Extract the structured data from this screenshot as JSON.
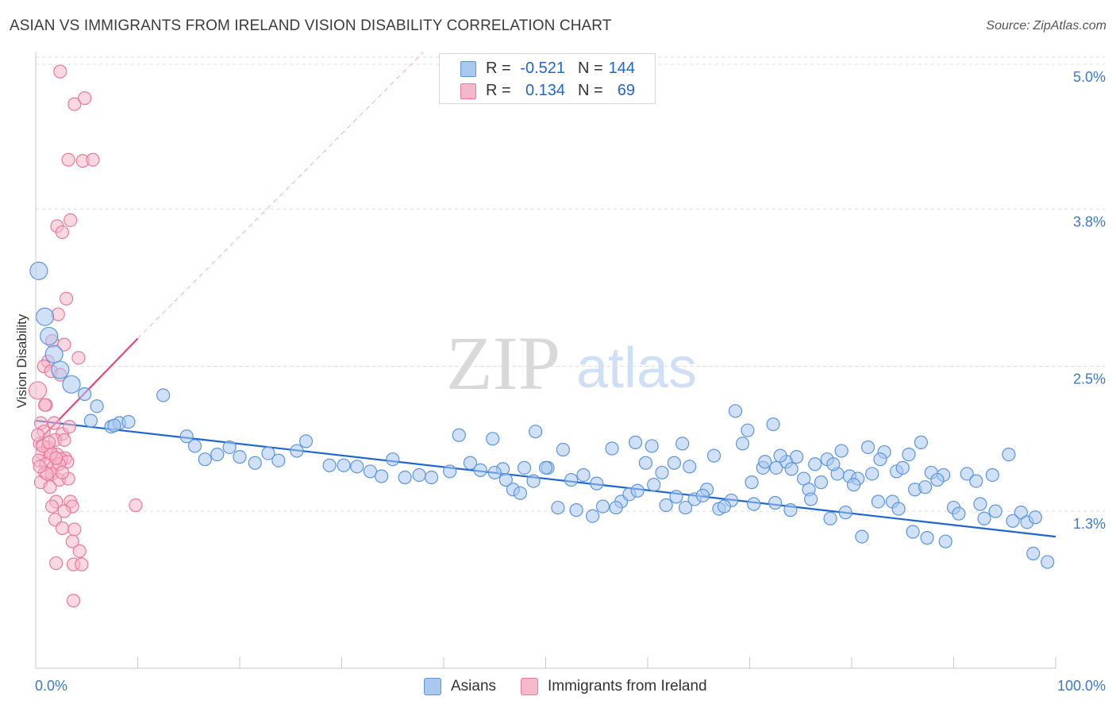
{
  "title": "ASIAN VS IMMIGRANTS FROM IRELAND VISION DISABILITY CORRELATION CHART",
  "source_label": "Source:",
  "source_value": "ZipAtlas.com",
  "watermark": {
    "zip": "ZIP",
    "atlas": "atlas"
  },
  "colors": {
    "blue_fill": "#a9c8f0",
    "blue_stroke": "#5b95dd",
    "blue_line": "#1f66cf",
    "pink_fill": "#f6b8cb",
    "pink_stroke": "#e9799d",
    "pink_line": "#e8457a",
    "axis_text": "#3b78d0",
    "grid": "#dcdcdc"
  },
  "legend_top": [
    {
      "r_label": "R =",
      "r_value": "-0.521",
      "n_label": "N =",
      "n_value": "144"
    },
    {
      "r_label": "R =",
      "r_value": "0.134",
      "n_label": "N =",
      "n_value": "69"
    }
  ],
  "legend_bottom": [
    "Asians",
    "Immigrants from Ireland"
  ],
  "chart_data": {
    "type": "scatter",
    "title": "ASIAN VS IMMIGRANTS FROM IRELAND VISION DISABILITY CORRELATION CHART",
    "xlabel": "",
    "ylabel": "Vision Disability",
    "x_unit": "%",
    "xlim": [
      0,
      100
    ],
    "ylim": [
      0,
      5.2
    ],
    "x_tick_labels": [
      "0.0%",
      "100.0%"
    ],
    "y_ticks": [
      1.3,
      2.5,
      3.8,
      5.0
    ],
    "y_tick_labels": [
      "1.3%",
      "2.5%",
      "3.8%",
      "5.0%"
    ],
    "grid": true,
    "legend_position": "top-center",
    "series": [
      {
        "name": "Asians",
        "r": -0.521,
        "n": 144,
        "trend": {
          "x": [
            0,
            100
          ],
          "y": [
            2.05,
            1.09
          ],
          "style": "solid"
        },
        "points": [
          [
            0.3,
            3.29,
            2
          ],
          [
            0.9,
            2.91,
            2
          ],
          [
            1.3,
            2.75,
            2
          ],
          [
            1.8,
            2.6,
            2
          ],
          [
            2.4,
            2.47,
            2
          ],
          [
            3.5,
            2.35,
            2
          ],
          [
            4.8,
            2.27,
            1
          ],
          [
            6.0,
            2.17,
            1
          ],
          [
            5.4,
            2.05,
            1
          ],
          [
            7.4,
            2.0,
            1
          ],
          [
            8.2,
            2.03,
            1
          ],
          [
            7.7,
            2.01,
            1
          ],
          [
            9.1,
            2.04,
            1
          ],
          [
            12.5,
            2.26,
            1
          ],
          [
            14.8,
            1.92,
            1
          ],
          [
            15.6,
            1.84,
            1
          ],
          [
            16.6,
            1.73,
            1
          ],
          [
            17.8,
            1.77,
            1
          ],
          [
            19.0,
            1.83,
            1
          ],
          [
            20.0,
            1.75,
            1
          ],
          [
            21.5,
            1.7,
            1
          ],
          [
            22.8,
            1.78,
            1
          ],
          [
            23.8,
            1.72,
            1
          ],
          [
            25.6,
            1.8,
            1
          ],
          [
            26.5,
            1.88,
            1
          ],
          [
            28.8,
            1.68,
            1
          ],
          [
            30.2,
            1.68,
            1
          ],
          [
            31.5,
            1.67,
            1
          ],
          [
            32.8,
            1.63,
            1
          ],
          [
            33.9,
            1.59,
            1
          ],
          [
            35.0,
            1.73,
            1
          ],
          [
            36.2,
            1.58,
            1
          ],
          [
            37.6,
            1.6,
            1
          ],
          [
            38.8,
            1.58,
            1
          ],
          [
            40.6,
            1.63,
            1
          ],
          [
            41.5,
            1.93,
            1
          ],
          [
            42.6,
            1.7,
            1
          ],
          [
            43.6,
            1.64,
            1
          ],
          [
            44.8,
            1.9,
            1
          ],
          [
            45.8,
            1.65,
            1
          ],
          [
            46.8,
            1.48,
            1
          ],
          [
            47.5,
            1.45,
            1
          ],
          [
            48.8,
            1.55,
            1
          ],
          [
            50.2,
            1.66,
            1
          ],
          [
            51.7,
            1.81,
            1
          ],
          [
            52.5,
            1.56,
            1
          ],
          [
            53.7,
            1.6,
            1
          ],
          [
            55.0,
            1.53,
            1
          ],
          [
            56.5,
            1.82,
            1
          ],
          [
            57.4,
            1.38,
            1
          ],
          [
            58.2,
            1.44,
            1
          ],
          [
            59.0,
            1.47,
            1
          ],
          [
            59.8,
            1.7,
            1
          ],
          [
            60.6,
            1.52,
            1
          ],
          [
            61.8,
            1.35,
            1
          ],
          [
            62.8,
            1.42,
            1
          ],
          [
            63.7,
            1.33,
            1
          ],
          [
            64.6,
            1.4,
            1
          ],
          [
            65.8,
            1.48,
            1
          ],
          [
            67.0,
            1.32,
            1
          ],
          [
            68.2,
            1.39,
            1
          ],
          [
            69.3,
            1.86,
            1
          ],
          [
            70.2,
            1.54,
            1
          ],
          [
            71.3,
            1.66,
            1
          ],
          [
            72.6,
            1.66,
            1
          ],
          [
            73.6,
            1.71,
            1
          ],
          [
            74.6,
            1.75,
            1
          ],
          [
            75.3,
            1.57,
            1
          ],
          [
            76.4,
            1.69,
            1
          ],
          [
            77.6,
            1.73,
            1
          ],
          [
            78.6,
            1.61,
            1
          ],
          [
            79.8,
            1.59,
            1
          ],
          [
            80.6,
            1.57,
            1
          ],
          [
            82.0,
            1.61,
            1
          ],
          [
            83.2,
            1.79,
            1
          ],
          [
            84.4,
            1.63,
            1
          ],
          [
            85.6,
            1.77,
            1
          ],
          [
            86.8,
            1.87,
            1
          ],
          [
            87.8,
            1.62,
            1
          ],
          [
            89.0,
            1.6,
            1
          ],
          [
            65.4,
            1.43,
            1
          ],
          [
            68.6,
            2.13,
            1
          ],
          [
            69.8,
            1.97,
            1
          ],
          [
            71.5,
            1.71,
            1
          ],
          [
            72.3,
            2.02,
            1
          ],
          [
            73.0,
            1.76,
            1
          ],
          [
            74.1,
            1.65,
            1
          ],
          [
            75.8,
            1.48,
            1
          ],
          [
            77.0,
            1.54,
            1
          ],
          [
            78.2,
            1.69,
            1
          ],
          [
            79.0,
            1.8,
            1
          ],
          [
            80.2,
            1.52,
            1
          ],
          [
            81.6,
            1.83,
            1
          ],
          [
            82.8,
            1.73,
            1
          ],
          [
            84.0,
            1.38,
            1
          ],
          [
            85.0,
            1.66,
            1
          ],
          [
            86.2,
            1.48,
            1
          ],
          [
            87.2,
            1.5,
            1
          ],
          [
            88.4,
            1.56,
            1
          ],
          [
            90.0,
            1.33,
            1
          ],
          [
            91.3,
            1.61,
            1
          ],
          [
            92.2,
            1.55,
            1
          ],
          [
            93.0,
            1.24,
            1
          ],
          [
            93.8,
            1.6,
            1
          ],
          [
            95.4,
            1.77,
            1
          ],
          [
            96.6,
            1.29,
            1
          ],
          [
            97.2,
            1.21,
            1
          ],
          [
            98.0,
            1.25,
            1
          ],
          [
            70.4,
            1.36,
            1
          ],
          [
            72.5,
            1.37,
            1
          ],
          [
            74.0,
            1.31,
            1
          ],
          [
            76.0,
            1.4,
            1
          ],
          [
            77.9,
            1.24,
            1
          ],
          [
            79.4,
            1.29,
            1
          ],
          [
            81.0,
            1.09,
            1
          ],
          [
            82.6,
            1.38,
            1
          ],
          [
            84.6,
            1.32,
            1
          ],
          [
            86.0,
            1.13,
            1
          ],
          [
            87.4,
            1.08,
            1
          ],
          [
            89.2,
            1.05,
            1
          ],
          [
            90.5,
            1.28,
            1
          ],
          [
            92.6,
            1.36,
            1
          ],
          [
            94.1,
            1.3,
            1
          ],
          [
            95.8,
            1.22,
            1
          ],
          [
            97.8,
            0.95,
            1
          ],
          [
            99.2,
            0.88,
            1
          ],
          [
            58.8,
            1.87,
            1
          ],
          [
            60.4,
            1.84,
            1
          ],
          [
            61.4,
            1.62,
            1
          ],
          [
            62.6,
            1.7,
            1
          ],
          [
            63.4,
            1.86,
            1
          ],
          [
            64.1,
            1.67,
            1
          ],
          [
            66.5,
            1.76,
            1
          ],
          [
            67.5,
            1.34,
            1
          ],
          [
            54.6,
            1.26,
            1
          ],
          [
            55.6,
            1.34,
            1
          ],
          [
            56.9,
            1.33,
            1
          ],
          [
            53.0,
            1.31,
            1
          ],
          [
            51.2,
            1.33,
            1
          ],
          [
            50.0,
            1.66,
            1
          ],
          [
            49.0,
            1.96,
            1
          ],
          [
            47.9,
            1.66,
            1
          ],
          [
            46.1,
            1.56,
            1
          ],
          [
            45.0,
            1.62,
            1
          ]
        ]
      },
      {
        "name": "Immigrants from Ireland",
        "r": 0.134,
        "n": 69,
        "trend": {
          "x": [
            0,
            10
          ],
          "y": [
            1.86,
            2.73
          ],
          "style": "solid",
          "extended_to": [
            38.0,
            5.1
          ],
          "extended_style": "dashed"
        },
        "points": [
          [
            2.4,
            4.94,
            1
          ],
          [
            3.8,
            4.67,
            1
          ],
          [
            4.8,
            4.72,
            1
          ],
          [
            3.2,
            4.21,
            1
          ],
          [
            4.6,
            4.2,
            1
          ],
          [
            5.6,
            4.21,
            1
          ],
          [
            3.4,
            3.71,
            1
          ],
          [
            2.1,
            3.66,
            1
          ],
          [
            2.6,
            3.61,
            1
          ],
          [
            3.0,
            3.06,
            1
          ],
          [
            2.2,
            2.93,
            1
          ],
          [
            1.6,
            2.71,
            1
          ],
          [
            2.8,
            2.68,
            1
          ],
          [
            1.2,
            2.54,
            1
          ],
          [
            0.8,
            2.5,
            1
          ],
          [
            1.5,
            2.46,
            1
          ],
          [
            2.4,
            2.43,
            1
          ],
          [
            4.2,
            2.57,
            1
          ],
          [
            0.2,
            2.3,
            2
          ],
          [
            1.0,
            2.18,
            1
          ],
          [
            0.5,
            2.03,
            1
          ],
          [
            1.8,
            2.03,
            1
          ],
          [
            0.8,
            1.96,
            1
          ],
          [
            2.6,
            1.94,
            1
          ],
          [
            3.3,
            2.0,
            1
          ],
          [
            0.4,
            1.86,
            1
          ],
          [
            1.2,
            1.83,
            1
          ],
          [
            1.9,
            1.89,
            1
          ],
          [
            0.6,
            1.78,
            1
          ],
          [
            1.4,
            1.77,
            1
          ],
          [
            2.1,
            1.77,
            1
          ],
          [
            2.9,
            1.74,
            1
          ],
          [
            0.3,
            1.72,
            1
          ],
          [
            1.0,
            1.69,
            1
          ],
          [
            1.7,
            1.66,
            1
          ],
          [
            2.5,
            1.73,
            1
          ],
          [
            3.1,
            1.71,
            1
          ],
          [
            0.9,
            1.62,
            1
          ],
          [
            1.6,
            1.61,
            1
          ],
          [
            2.3,
            1.56,
            1
          ],
          [
            3.2,
            1.57,
            1
          ],
          [
            0.5,
            1.54,
            1
          ],
          [
            1.4,
            1.5,
            1
          ],
          [
            2.0,
            1.38,
            1
          ],
          [
            3.4,
            1.38,
            1
          ],
          [
            3.6,
            1.34,
            1
          ],
          [
            1.6,
            1.34,
            1
          ],
          [
            2.8,
            1.3,
            1
          ],
          [
            1.9,
            1.23,
            1
          ],
          [
            2.6,
            1.16,
            1
          ],
          [
            3.8,
            1.15,
            1
          ],
          [
            3.6,
            1.05,
            1
          ],
          [
            4.3,
            0.97,
            1
          ],
          [
            2.0,
            0.87,
            1
          ],
          [
            3.7,
            0.86,
            1
          ],
          [
            4.5,
            0.86,
            1
          ],
          [
            3.7,
            0.56,
            1
          ],
          [
            9.8,
            1.35,
            1
          ],
          [
            2.8,
            1.89,
            1
          ],
          [
            0.9,
            2.18,
            1
          ],
          [
            1.5,
            1.78,
            1
          ],
          [
            0.2,
            1.93,
            1
          ],
          [
            2.3,
            1.69,
            1
          ],
          [
            1.1,
            1.61,
            1
          ],
          [
            2.6,
            1.62,
            1
          ],
          [
            0.7,
            1.84,
            1
          ],
          [
            1.3,
            1.87,
            1
          ],
          [
            0.4,
            1.67,
            1
          ],
          [
            2.0,
            1.74,
            1
          ]
        ]
      }
    ]
  }
}
